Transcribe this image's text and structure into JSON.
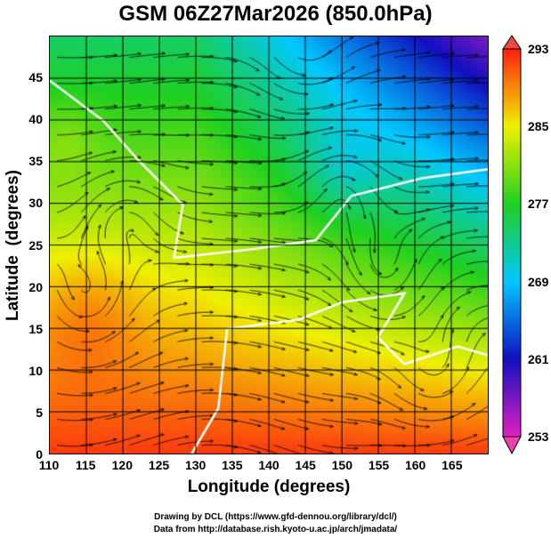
{
  "title": "GSM 06Z27Mar2026 (850.0hPa)",
  "chart_data": {
    "type": "heatmap",
    "title": "GSM 06Z27Mar2026 (850.0hPa)",
    "xlabel": "Longitude (degrees)",
    "ylabel": "Latitude  (degrees)",
    "xlim": [
      110,
      170
    ],
    "ylim": [
      0,
      50
    ],
    "xticks": [
      "110",
      "115",
      "120",
      "125",
      "130",
      "135",
      "140",
      "145",
      "150",
      "155",
      "160",
      "165"
    ],
    "yticks": [
      "0",
      "5",
      "10",
      "15",
      "20",
      "25",
      "30",
      "35",
      "40",
      "45"
    ],
    "grid": true,
    "colorbar": {
      "ticks": [
        "293",
        "285",
        "277",
        "269",
        "261",
        "253"
      ],
      "range": [
        253,
        293
      ],
      "colors": [
        "#e020c0",
        "#1010c0",
        "#00c8ff",
        "#20d020",
        "#f0f000",
        "#ff2010"
      ]
    },
    "overlay": "streamlines with white contour lines"
  },
  "footer": {
    "line1": "Drawing by DCL (https://www.gfd-dennou.org/library/dcl/)",
    "line2": "Data from http://database.rish.kyoto-u.ac.jp/arch/jmadata/"
  }
}
